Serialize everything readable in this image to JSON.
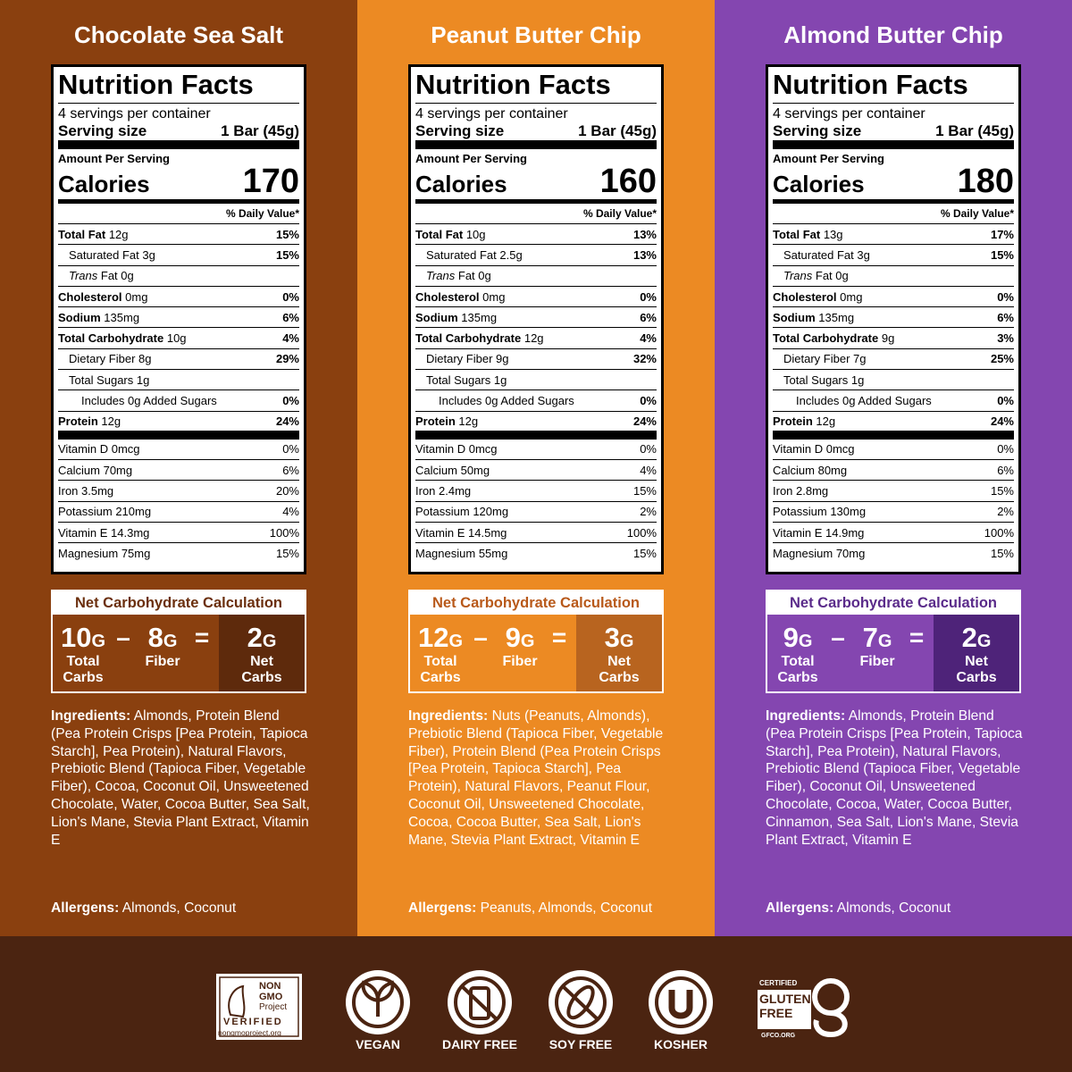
{
  "panels": [
    {
      "flavor": "Chocolate Sea Salt",
      "facts": {
        "title": "Nutrition Facts",
        "servings": "4 servings per container",
        "serving_size_label": "Serving size",
        "serving_size": "1 Bar (45g)",
        "amount_per_serving": "Amount Per Serving",
        "calories_label": "Calories",
        "calories": "170",
        "dv_header": "% Daily Value*",
        "rows": [
          {
            "name": "Total Fat",
            "amount": "12g",
            "dv": "15%"
          },
          {
            "name": "Saturated Fat",
            "amount": "3g",
            "dv": "15%"
          },
          {
            "name": "Trans",
            "amount": "Fat 0g"
          },
          {
            "name": "Cholesterol",
            "amount": "0mg",
            "dv": "0%"
          },
          {
            "name": "Sodium",
            "amount": "135mg",
            "dv": "6%"
          },
          {
            "name": "Total Carbohydrate",
            "amount": "10g",
            "dv": "4%"
          },
          {
            "name": "Dietary Fiber",
            "amount": "8g",
            "dv": "29%"
          },
          {
            "name": "Total Sugars",
            "amount": "1g"
          },
          {
            "name": "Includes 0g Added Sugars",
            "dv": "0%"
          },
          {
            "name": "Protein",
            "amount": "12g",
            "dv": "24%"
          }
        ],
        "vitamins": [
          {
            "name": "Vitamin D",
            "amount": "0mcg",
            "dv": "0%"
          },
          {
            "name": "Calcium",
            "amount": "70mg",
            "dv": "6%"
          },
          {
            "name": "Iron",
            "amount": "3.5mg",
            "dv": "20%"
          },
          {
            "name": "Potassium",
            "amount": "210mg",
            "dv": "4%"
          },
          {
            "name": "Vitamin E",
            "amount": "14.3mg",
            "dv": "100%"
          },
          {
            "name": "Magnesium",
            "amount": "75mg",
            "dv": "15%"
          }
        ]
      },
      "net_carb": {
        "title": "Net Carbohydrate Calculation",
        "total": {
          "value": "10",
          "unit": "G",
          "label": "Total Carbs"
        },
        "minus": "–",
        "fiber": {
          "value": "8",
          "unit": "G",
          "label": "Fiber"
        },
        "equals": "=",
        "net": {
          "value": "2",
          "unit": "G",
          "label": "Net Carbs"
        }
      },
      "ingredients_label": "Ingredients:",
      "ingredients": "Almonds, Protein Blend (Pea Protein Crisps [Pea Protein, Tapioca Starch], Pea Protein), Natural Flavors, Prebiotic Blend (Tapioca Fiber, Vegetable Fiber), Cocoa, Coconut Oil, Unsweetened Chocolate, Water, Cocoa Butter, Sea Salt, Lion's Mane, Stevia Plant Extract, Vitamin E",
      "allergens_label": "Allergens:",
      "allergens": "Almonds, Coconut"
    },
    {
      "flavor": "Peanut Butter Chip",
      "facts": {
        "title": "Nutrition Facts",
        "servings": "4 servings per container",
        "serving_size_label": "Serving size",
        "serving_size": "1 Bar (45g)",
        "amount_per_serving": "Amount Per Serving",
        "calories_label": "Calories",
        "calories": "160",
        "dv_header": "% Daily Value*",
        "rows": [
          {
            "name": "Total Fat",
            "amount": "10g",
            "dv": "13%"
          },
          {
            "name": "Saturated Fat",
            "amount": "2.5g",
            "dv": "13%"
          },
          {
            "name": "Trans",
            "amount": "Fat 0g"
          },
          {
            "name": "Cholesterol",
            "amount": "0mg",
            "dv": "0%"
          },
          {
            "name": "Sodium",
            "amount": "135mg",
            "dv": "6%"
          },
          {
            "name": "Total Carbohydrate",
            "amount": "12g",
            "dv": "4%"
          },
          {
            "name": "Dietary Fiber",
            "amount": "9g",
            "dv": "32%"
          },
          {
            "name": "Total Sugars",
            "amount": "1g"
          },
          {
            "name": "Includes 0g Added Sugars",
            "dv": "0%"
          },
          {
            "name": "Protein",
            "amount": "12g",
            "dv": "24%"
          }
        ],
        "vitamins": [
          {
            "name": "Vitamin D",
            "amount": "0mcg",
            "dv": "0%"
          },
          {
            "name": "Calcium",
            "amount": "50mg",
            "dv": "4%"
          },
          {
            "name": "Iron",
            "amount": "2.4mg",
            "dv": "15%"
          },
          {
            "name": "Potassium",
            "amount": "120mg",
            "dv": "2%"
          },
          {
            "name": "Vitamin E",
            "amount": "14.5mg",
            "dv": "100%"
          },
          {
            "name": "Magnesium",
            "amount": "55mg",
            "dv": "15%"
          }
        ]
      },
      "net_carb": {
        "title": "Net Carbohydrate Calculation",
        "total": {
          "value": "12",
          "unit": "G",
          "label": "Total Carbs"
        },
        "minus": "–",
        "fiber": {
          "value": "9",
          "unit": "G",
          "label": "Fiber"
        },
        "equals": "=",
        "net": {
          "value": "3",
          "unit": "G",
          "label": "Net Carbs"
        }
      },
      "ingredients_label": "Ingredients:",
      "ingredients": "Nuts (Peanuts, Almonds), Prebiotic Blend (Tapioca Fiber, Vegetable Fiber), Protein Blend (Pea Protein Crisps [Pea Protein, Tapioca Starch], Pea Protein), Natural Flavors, Peanut Flour, Coconut Oil, Unsweetened Chocolate, Cocoa, Cocoa Butter, Sea Salt, Lion's Mane, Stevia Plant Extract, Vitamin E",
      "allergens_label": "Allergens:",
      "allergens": "Peanuts, Almonds, Coconut"
    },
    {
      "flavor": "Almond Butter Chip",
      "facts": {
        "title": "Nutrition Facts",
        "servings": "4 servings per container",
        "serving_size_label": "Serving size",
        "serving_size": "1 Bar (45g)",
        "amount_per_serving": "Amount Per Serving",
        "calories_label": "Calories",
        "calories": "180",
        "dv_header": "% Daily Value*",
        "rows": [
          {
            "name": "Total Fat",
            "amount": "13g",
            "dv": "17%"
          },
          {
            "name": "Saturated Fat",
            "amount": "3g",
            "dv": "15%"
          },
          {
            "name": "Trans",
            "amount": "Fat 0g"
          },
          {
            "name": "Cholesterol",
            "amount": "0mg",
            "dv": "0%"
          },
          {
            "name": "Sodium",
            "amount": "135mg",
            "dv": "6%"
          },
          {
            "name": "Total Carbohydrate",
            "amount": "9g",
            "dv": "3%"
          },
          {
            "name": "Dietary Fiber",
            "amount": "7g",
            "dv": "25%"
          },
          {
            "name": "Total Sugars",
            "amount": "1g"
          },
          {
            "name": "Includes 0g Added Sugars",
            "dv": "0%"
          },
          {
            "name": "Protein",
            "amount": "12g",
            "dv": "24%"
          }
        ],
        "vitamins": [
          {
            "name": "Vitamin D",
            "amount": "0mcg",
            "dv": "0%"
          },
          {
            "name": "Calcium",
            "amount": "80mg",
            "dv": "6%"
          },
          {
            "name": "Iron",
            "amount": "2.8mg",
            "dv": "15%"
          },
          {
            "name": "Potassium",
            "amount": "130mg",
            "dv": "2%"
          },
          {
            "name": "Vitamin E",
            "amount": "14.9mg",
            "dv": "100%"
          },
          {
            "name": "Magnesium",
            "amount": "70mg",
            "dv": "15%"
          }
        ]
      },
      "net_carb": {
        "title": "Net Carbohydrate Calculation",
        "total": {
          "value": "9",
          "unit": "G",
          "label": "Total Carbs"
        },
        "minus": "–",
        "fiber": {
          "value": "7",
          "unit": "G",
          "label": "Fiber"
        },
        "equals": "=",
        "net": {
          "value": "2",
          "unit": "G",
          "label": "Net Carbs"
        }
      },
      "ingredients_label": "Ingredients:",
      "ingredients": "Almonds, Protein Blend (Pea Protein Crisps [Pea Protein, Tapioca Starch], Pea Protein), Natural Flavors, Prebiotic Blend (Tapioca Fiber, Vegetable Fiber), Coconut Oil, Unsweetened Chocolate, Cocoa, Water, Cocoa Butter, Cinnamon, Sea Salt, Lion's Mane, Stevia Plant Extract, Vitamin E",
      "allergens_label": "Allergens:",
      "allergens": "Almonds, Coconut"
    }
  ],
  "badges": {
    "non_gmo": {
      "line1": "NON",
      "line2": "GMO",
      "line3": "Project",
      "verified": "VERIFIED",
      "url": "nongmoproject.org"
    },
    "icons": [
      "VEGAN",
      "DAIRY FREE",
      "SOY FREE",
      "KOSHER"
    ],
    "gluten_free": {
      "certified": "CERTIFIED",
      "line1": "GLUTEN",
      "line2": "FREE",
      "url": "GFCO.ORG"
    }
  }
}
